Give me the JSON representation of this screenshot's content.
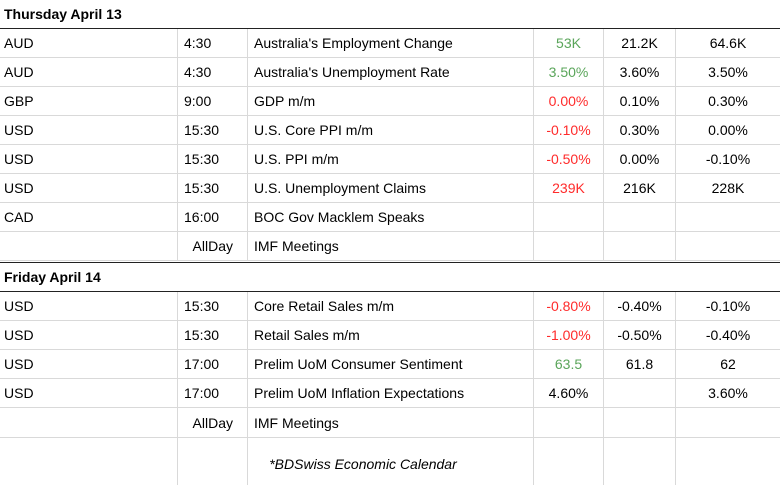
{
  "sections": [
    {
      "title": "Thursday April 13",
      "rows": [
        {
          "currency": "AUD",
          "time": "4:30",
          "event": "Australia's Employment Change",
          "actual": "53K",
          "actual_color": "green",
          "forecast": "21.2K",
          "previous": "64.6K"
        },
        {
          "currency": "AUD",
          "time": "4:30",
          "event": "Australia's Unemployment Rate",
          "actual": "3.50%",
          "actual_color": "green",
          "forecast": "3.60%",
          "previous": "3.50%"
        },
        {
          "currency": "GBP",
          "time": "9:00",
          "event": "GDP m/m",
          "actual": "0.00%",
          "actual_color": "red",
          "forecast": "0.10%",
          "previous": "0.30%"
        },
        {
          "currency": "USD",
          "time": "15:30",
          "event": "U.S. Core PPI m/m",
          "actual": "-0.10%",
          "actual_color": "red",
          "forecast": "0.30%",
          "previous": "0.00%"
        },
        {
          "currency": "USD",
          "time": "15:30",
          "event": "U.S. PPI m/m",
          "actual": "-0.50%",
          "actual_color": "red",
          "forecast": "0.00%",
          "previous": "-0.10%"
        },
        {
          "currency": "USD",
          "time": "15:30",
          "event": "U.S. Unemployment Claims",
          "actual": "239K",
          "actual_color": "red",
          "forecast": "216K",
          "previous": "228K"
        },
        {
          "currency": "CAD",
          "time": "16:00",
          "event": "BOC Gov Macklem Speaks",
          "actual": "",
          "actual_color": "black",
          "forecast": "",
          "previous": ""
        },
        {
          "currency": "",
          "time": "AllDay",
          "event": "IMF Meetings",
          "actual": "",
          "actual_color": "black",
          "forecast": "",
          "previous": ""
        }
      ]
    },
    {
      "title": "Friday April 14",
      "rows": [
        {
          "currency": "USD",
          "time": "15:30",
          "event": "Core Retail Sales m/m",
          "actual": "-0.80%",
          "actual_color": "red",
          "forecast": "-0.40%",
          "previous": "-0.10%"
        },
        {
          "currency": "USD",
          "time": "15:30",
          "event": "Retail Sales m/m",
          "actual": "-1.00%",
          "actual_color": "red",
          "forecast": "-0.50%",
          "previous": "-0.40%"
        },
        {
          "currency": "USD",
          "time": "17:00",
          "event": "Prelim UoM Consumer Sentiment",
          "actual": "63.5",
          "actual_color": "green",
          "forecast": "61.8",
          "previous": "62"
        },
        {
          "currency": "USD",
          "time": "17:00",
          "event": "Prelim UoM Inflation Expectations",
          "actual": "4.60%",
          "actual_color": "black",
          "forecast": "",
          "previous": "3.60%"
        },
        {
          "currency": "",
          "time": "AllDay",
          "event": "IMF Meetings",
          "actual": "",
          "actual_color": "black",
          "forecast": "",
          "previous": ""
        }
      ]
    }
  ],
  "footer": {
    "text": "*BDSwiss Economic Calendar"
  }
}
